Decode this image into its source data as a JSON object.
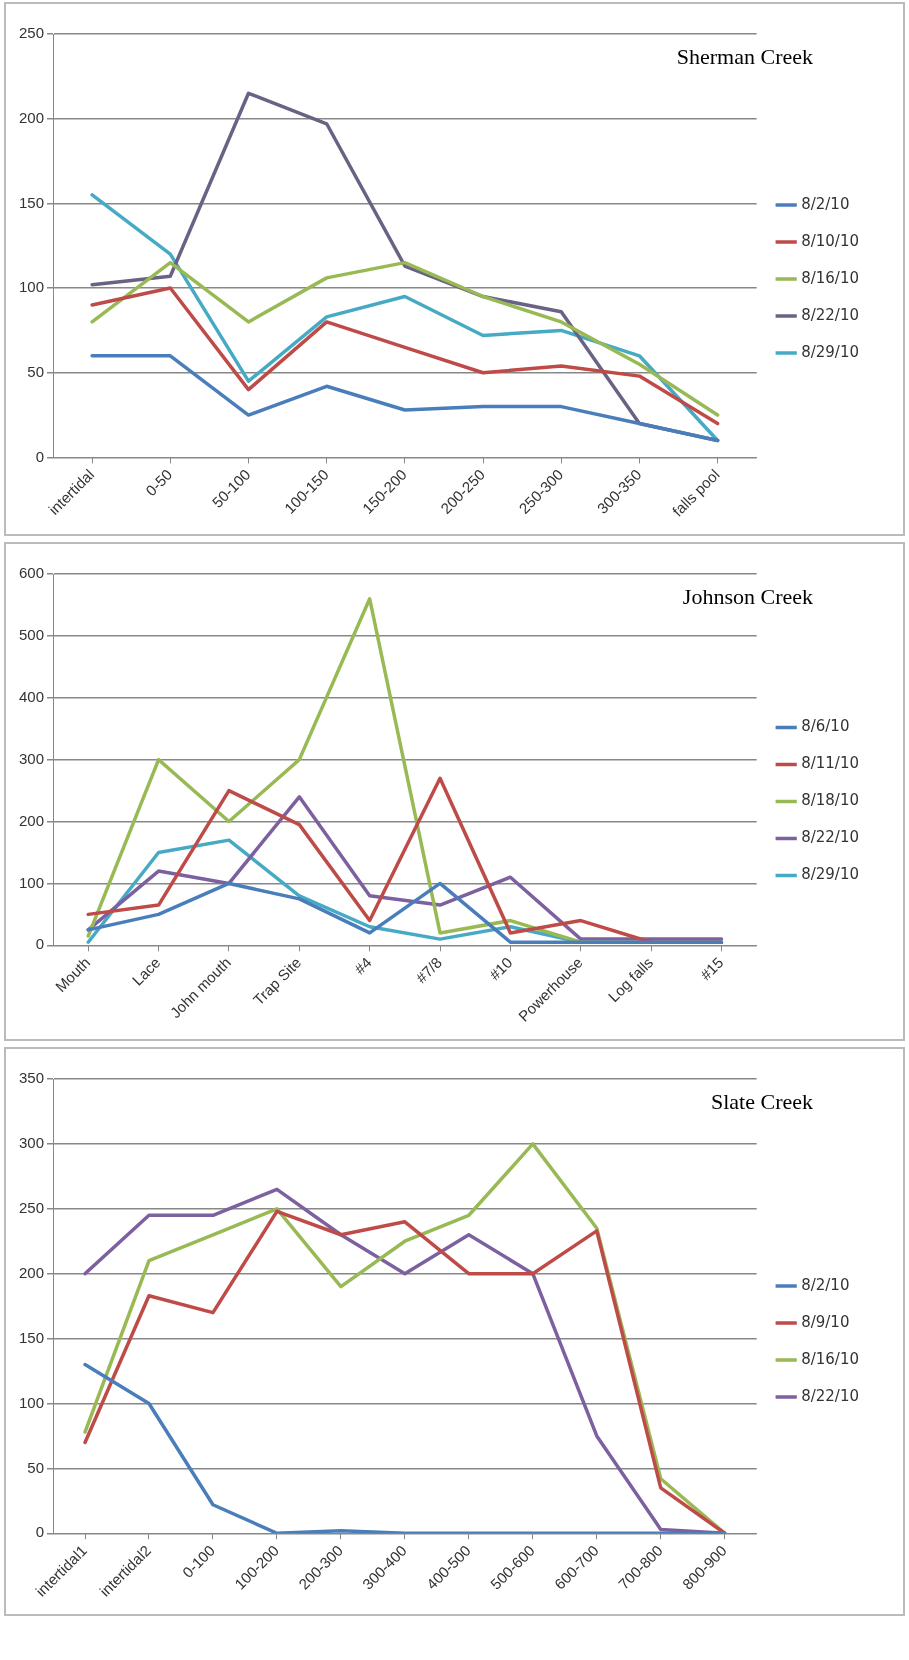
{
  "chart_data": [
    {
      "type": "line",
      "title": "Sherman Creek",
      "categories": [
        "intertidal",
        "0-50",
        "50-100",
        "100-150",
        "150-200",
        "200-250",
        "250-300",
        "300-350",
        "falls pool"
      ],
      "series": [
        {
          "name": "8/2/10",
          "color": "#4a7ebb",
          "values": [
            60,
            60,
            25,
            42,
            28,
            30,
            30,
            20,
            10
          ]
        },
        {
          "name": "8/10/10",
          "color": "#be4b48",
          "values": [
            90,
            100,
            40,
            80,
            65,
            50,
            54,
            48,
            20
          ]
        },
        {
          "name": "8/16/10",
          "color": "#98b954",
          "values": [
            80,
            115,
            80,
            106,
            115,
            95,
            80,
            55,
            25
          ]
        },
        {
          "name": "8/22/10",
          "color": "#6a6285",
          "values": [
            102,
            107,
            215,
            197,
            113,
            95,
            86,
            20,
            10
          ]
        },
        {
          "name": "8/29/10",
          "color": "#46aac5",
          "values": [
            155,
            120,
            45,
            83,
            95,
            72,
            75,
            60,
            10
          ]
        }
      ],
      "ylim": [
        0,
        250
      ],
      "yticks": [
        0,
        50,
        100,
        150,
        200,
        250
      ],
      "grid": "y",
      "legend": "right",
      "marker": "none",
      "line_style": "solid"
    },
    {
      "type": "line",
      "title": "Johnson Creek",
      "categories": [
        "Mouth",
        "Lace",
        "John mouth",
        "Trap Site",
        "#4",
        "#7/8",
        "#10",
        "Powerhouse",
        "Log falls",
        "#15"
      ],
      "series": [
        {
          "name": "8/6/10",
          "color": "#4a7ebb",
          "values": [
            25,
            50,
            100,
            75,
            20,
            100,
            5,
            5,
            5,
            5
          ]
        },
        {
          "name": "8/11/10",
          "color": "#be4b48",
          "values": [
            50,
            65,
            250,
            195,
            40,
            270,
            20,
            40,
            5,
            5
          ]
        },
        {
          "name": "8/18/10",
          "color": "#98b954",
          "values": [
            15,
            300,
            200,
            300,
            560,
            20,
            40,
            5,
            5,
            5
          ]
        },
        {
          "name": "8/22/10",
          "color": "#7d60a0",
          "values": [
            25,
            120,
            100,
            240,
            80,
            65,
            110,
            10,
            10,
            10
          ]
        },
        {
          "name": "8/29/10",
          "color": "#46aac5",
          "values": [
            5,
            150,
            170,
            80,
            30,
            10,
            30,
            5,
            5,
            5
          ]
        }
      ],
      "ylim": [
        0,
        600
      ],
      "yticks": [
        0,
        100,
        200,
        300,
        400,
        500,
        600
      ],
      "grid": "y",
      "legend": "right",
      "marker": "none",
      "line_style": "solid"
    },
    {
      "type": "line",
      "title": "Slate Creek",
      "categories": [
        "intertidal1",
        "intertidal2",
        "0-100",
        "100-200",
        "200-300",
        "300-400",
        "400-500",
        "500-600",
        "600-700",
        "700-800",
        "800-900"
      ],
      "series": [
        {
          "name": "8/2/10",
          "color": "#4a7ebb",
          "values": [
            130,
            100,
            22,
            0,
            2,
            0,
            0,
            0,
            0,
            0,
            0
          ]
        },
        {
          "name": "8/9/10",
          "color": "#be4b48",
          "values": [
            70,
            183,
            170,
            248,
            230,
            240,
            200,
            200,
            233,
            35,
            0
          ]
        },
        {
          "name": "8/16/10",
          "color": "#98b954",
          "values": [
            78,
            210,
            230,
            250,
            190,
            225,
            245,
            300,
            235,
            42,
            0
          ]
        },
        {
          "name": "8/22/10",
          "color": "#7d60a0",
          "values": [
            200,
            245,
            245,
            265,
            230,
            200,
            230,
            200,
            75,
            3,
            0
          ]
        }
      ],
      "ylim": [
        0,
        350
      ],
      "yticks": [
        0,
        50,
        100,
        150,
        200,
        250,
        300,
        350
      ],
      "grid": "y",
      "legend": "right",
      "marker": "none",
      "line_style": "solid"
    }
  ]
}
